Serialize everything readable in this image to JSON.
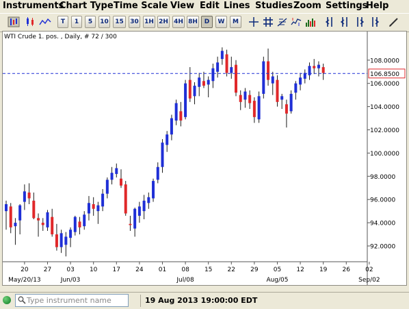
{
  "menu": [
    "Instruments",
    "Chart Type",
    "Time Scale",
    "View",
    "Edit",
    "Lines",
    "Studies",
    "Zoom",
    "Settings",
    "Help"
  ],
  "toolbar": {
    "timeframes": [
      "T",
      "1",
      "5",
      "10",
      "15",
      "30",
      "1H",
      "2H",
      "4H",
      "8H",
      "D",
      "W",
      "M"
    ],
    "selected_timeframe": "D"
  },
  "chart": {
    "instrument_label": "WTI Crude 1. pos. , Daily, # 72 / 300",
    "current_price_label": "106.8500",
    "current_price": 106.85,
    "bull_color": "#1f2fd6",
    "bear_color": "#e0282a",
    "wick_color": "#1a1a1a"
  },
  "status": {
    "instrument_placeholder": "Type instrument name",
    "datetime": "19 Aug 2013 19:00:00 EDT"
  },
  "chart_data": {
    "type": "candlestick",
    "ylim": [
      90.5,
      109.5
    ],
    "y_ticks": [
      92,
      94,
      96,
      98,
      100,
      102,
      104,
      106,
      108
    ],
    "y_tick_labels": [
      "92.0000",
      "94.0000",
      "96.0000",
      "98.0000",
      "100.0000",
      "102.0000",
      "104.0000",
      "106.0000",
      "108.0000"
    ],
    "x_ticks": [
      {
        "label": "20",
        "index": 4
      },
      {
        "label": "27",
        "index": 9
      },
      {
        "label": "03",
        "index": 14
      },
      {
        "label": "10",
        "index": 19
      },
      {
        "label": "17",
        "index": 24
      },
      {
        "label": "24",
        "index": 29
      },
      {
        "label": "01",
        "index": 34
      },
      {
        "label": "08",
        "index": 39
      },
      {
        "label": "15",
        "index": 44
      },
      {
        "label": "22",
        "index": 49
      },
      {
        "label": "29",
        "index": 54
      },
      {
        "label": "05",
        "index": 59
      },
      {
        "label": "12",
        "index": 64
      },
      {
        "label": "19",
        "index": 69
      },
      {
        "label": "26",
        "index": 74
      },
      {
        "label": "02",
        "index": 79
      }
    ],
    "month_labels": [
      {
        "label": "May/20/13",
        "index": 4
      },
      {
        "label": "Jun/03",
        "index": 14
      },
      {
        "label": "Jul/08",
        "index": 39
      },
      {
        "label": "Aug/05",
        "index": 59
      },
      {
        "label": "Sep/02",
        "index": 79
      }
    ],
    "candles": [
      {
        "o": 95.0,
        "h": 95.9,
        "l": 93.4,
        "c": 95.6
      },
      {
        "o": 95.4,
        "h": 95.7,
        "l": 93.1,
        "c": 93.6
      },
      {
        "o": 93.7,
        "h": 94.4,
        "l": 92.1,
        "c": 94.0
      },
      {
        "o": 94.2,
        "h": 95.6,
        "l": 93.0,
        "c": 95.5
      },
      {
        "o": 95.8,
        "h": 97.3,
        "l": 95.1,
        "c": 96.7
      },
      {
        "o": 96.6,
        "h": 97.4,
        "l": 95.6,
        "c": 96.1
      },
      {
        "o": 95.9,
        "h": 96.6,
        "l": 94.3,
        "c": 94.4
      },
      {
        "o": 94.4,
        "h": 94.8,
        "l": 92.8,
        "c": 94.2
      },
      {
        "o": 94.0,
        "h": 94.4,
        "l": 93.3,
        "c": 93.8
      },
      {
        "o": 93.6,
        "h": 95.1,
        "l": 93.3,
        "c": 94.9
      },
      {
        "o": 94.5,
        "h": 95.2,
        "l": 92.8,
        "c": 93.0
      },
      {
        "o": 93.0,
        "h": 93.9,
        "l": 91.6,
        "c": 91.9
      },
      {
        "o": 91.9,
        "h": 93.4,
        "l": 91.4,
        "c": 93.1
      },
      {
        "o": 92.1,
        "h": 93.2,
        "l": 91.1,
        "c": 92.8
      },
      {
        "o": 92.7,
        "h": 93.6,
        "l": 91.9,
        "c": 93.4
      },
      {
        "o": 93.2,
        "h": 94.6,
        "l": 92.9,
        "c": 94.5
      },
      {
        "o": 94.1,
        "h": 94.5,
        "l": 93.0,
        "c": 93.6
      },
      {
        "o": 93.7,
        "h": 95.0,
        "l": 93.4,
        "c": 94.7
      },
      {
        "o": 94.8,
        "h": 96.3,
        "l": 94.2,
        "c": 95.7
      },
      {
        "o": 95.6,
        "h": 96.2,
        "l": 94.6,
        "c": 95.2
      },
      {
        "o": 95.0,
        "h": 95.8,
        "l": 93.9,
        "c": 95.5
      },
      {
        "o": 95.4,
        "h": 96.9,
        "l": 95.0,
        "c": 96.5
      },
      {
        "o": 96.5,
        "h": 97.9,
        "l": 96.1,
        "c": 97.7
      },
      {
        "o": 97.7,
        "h": 98.8,
        "l": 97.3,
        "c": 98.3
      },
      {
        "o": 98.2,
        "h": 99.1,
        "l": 97.9,
        "c": 98.7
      },
      {
        "o": 97.8,
        "h": 98.6,
        "l": 97.0,
        "c": 97.2
      },
      {
        "o": 97.3,
        "h": 97.6,
        "l": 94.6,
        "c": 94.8
      },
      {
        "o": 93.9,
        "h": 94.6,
        "l": 93.3,
        "c": 93.8
      },
      {
        "o": 93.5,
        "h": 95.3,
        "l": 92.8,
        "c": 95.2
      },
      {
        "o": 94.6,
        "h": 95.8,
        "l": 94.0,
        "c": 95.4
      },
      {
        "o": 95.0,
        "h": 96.4,
        "l": 94.3,
        "c": 95.9
      },
      {
        "o": 95.7,
        "h": 96.6,
        "l": 95.2,
        "c": 96.2
      },
      {
        "o": 96.1,
        "h": 97.8,
        "l": 95.8,
        "c": 97.6
      },
      {
        "o": 97.7,
        "h": 99.2,
        "l": 97.4,
        "c": 98.8
      },
      {
        "o": 98.8,
        "h": 101.2,
        "l": 98.3,
        "c": 100.9
      },
      {
        "o": 100.7,
        "h": 101.9,
        "l": 100.1,
        "c": 101.6
      },
      {
        "o": 101.6,
        "h": 103.3,
        "l": 101.1,
        "c": 103.0
      },
      {
        "o": 102.8,
        "h": 104.6,
        "l": 102.4,
        "c": 104.3
      },
      {
        "o": 103.6,
        "h": 104.4,
        "l": 102.3,
        "c": 102.8
      },
      {
        "o": 103.1,
        "h": 106.3,
        "l": 102.9,
        "c": 106.0
      },
      {
        "o": 106.3,
        "h": 107.4,
        "l": 104.4,
        "c": 104.7
      },
      {
        "o": 104.9,
        "h": 106.1,
        "l": 104.2,
        "c": 105.8
      },
      {
        "o": 105.7,
        "h": 106.9,
        "l": 104.9,
        "c": 106.5
      },
      {
        "o": 106.2,
        "h": 107.0,
        "l": 105.6,
        "c": 105.8
      },
      {
        "o": 105.9,
        "h": 106.6,
        "l": 104.8,
        "c": 106.3
      },
      {
        "o": 106.2,
        "h": 107.7,
        "l": 105.6,
        "c": 107.3
      },
      {
        "o": 107.0,
        "h": 108.3,
        "l": 106.5,
        "c": 107.8
      },
      {
        "o": 108.1,
        "h": 109.1,
        "l": 107.6,
        "c": 108.8
      },
      {
        "o": 108.5,
        "h": 108.9,
        "l": 106.6,
        "c": 106.9
      },
      {
        "o": 106.9,
        "h": 108.3,
        "l": 106.4,
        "c": 107.4
      },
      {
        "o": 107.6,
        "h": 108.0,
        "l": 104.9,
        "c": 105.2
      },
      {
        "o": 105.0,
        "h": 105.4,
        "l": 103.7,
        "c": 104.4
      },
      {
        "o": 104.6,
        "h": 105.6,
        "l": 103.9,
        "c": 105.3
      },
      {
        "o": 105.0,
        "h": 105.4,
        "l": 103.8,
        "c": 104.3
      },
      {
        "o": 104.5,
        "h": 104.8,
        "l": 102.6,
        "c": 103.1
      },
      {
        "o": 102.9,
        "h": 105.3,
        "l": 102.6,
        "c": 104.9
      },
      {
        "o": 105.1,
        "h": 108.3,
        "l": 104.7,
        "c": 107.9
      },
      {
        "o": 107.9,
        "h": 109.0,
        "l": 105.8,
        "c": 106.3
      },
      {
        "o": 106.0,
        "h": 107.0,
        "l": 105.0,
        "c": 106.6
      },
      {
        "o": 106.3,
        "h": 106.7,
        "l": 104.0,
        "c": 104.4
      },
      {
        "o": 104.6,
        "h": 105.1,
        "l": 103.8,
        "c": 104.9
      },
      {
        "o": 104.2,
        "h": 104.6,
        "l": 102.2,
        "c": 103.4
      },
      {
        "o": 103.6,
        "h": 105.4,
        "l": 103.4,
        "c": 105.1
      },
      {
        "o": 105.2,
        "h": 106.2,
        "l": 104.6,
        "c": 106.0
      },
      {
        "o": 105.9,
        "h": 106.9,
        "l": 105.4,
        "c": 106.5
      },
      {
        "o": 106.4,
        "h": 107.2,
        "l": 106.0,
        "c": 106.9
      },
      {
        "o": 106.7,
        "h": 107.8,
        "l": 106.3,
        "c": 107.5
      },
      {
        "o": 107.5,
        "h": 108.1,
        "l": 106.8,
        "c": 107.3
      },
      {
        "o": 107.3,
        "h": 107.9,
        "l": 106.6,
        "c": 107.6
      },
      {
        "o": 107.4,
        "h": 107.7,
        "l": 106.3,
        "c": 106.9
      }
    ]
  }
}
